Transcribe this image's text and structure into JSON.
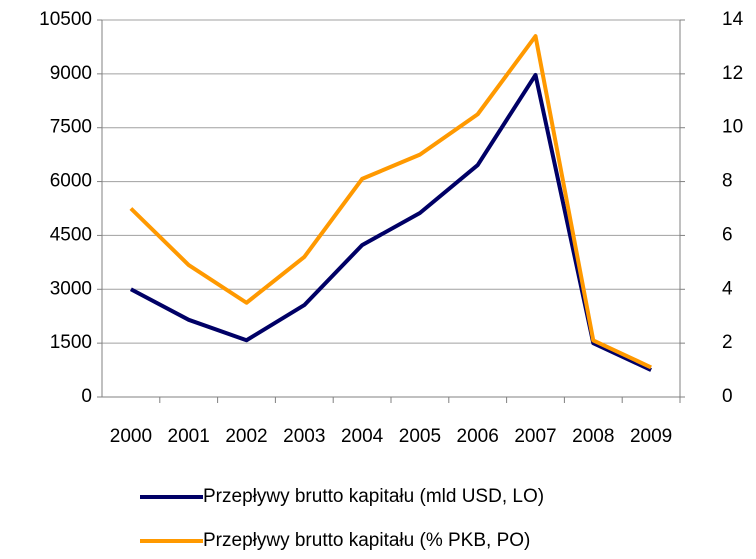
{
  "chart_data": {
    "type": "line",
    "categories": [
      "2000",
      "2001",
      "2002",
      "2003",
      "2004",
      "2005",
      "2006",
      "2007",
      "2008",
      "2009"
    ],
    "series": [
      {
        "name": "Przepływy brutto kapitału (mld USD, LO)",
        "color": "#000066",
        "values": [
          3000,
          2150,
          1580,
          2560,
          4230,
          5125,
          6460,
          8970,
          1500,
          750
        ]
      },
      {
        "name": "Przepływy brutto kapitału (% PKB, PO)",
        "color": "#ff9900",
        "axis": "y2",
        "values": [
          7.0,
          4.9,
          3.5,
          5.2,
          8.1,
          9.0,
          10.5,
          13.4,
          2.1,
          1.1
        ]
      }
    ],
    "ylim": [
      0,
      10500
    ],
    "yticks": [
      0,
      1500,
      3000,
      4500,
      6000,
      7500,
      9000,
      10500
    ],
    "y2lim": [
      0,
      14
    ],
    "y2ticks": [
      0,
      2,
      4,
      6,
      8,
      10,
      12,
      14
    ],
    "grid": true,
    "legend": "bottom"
  }
}
